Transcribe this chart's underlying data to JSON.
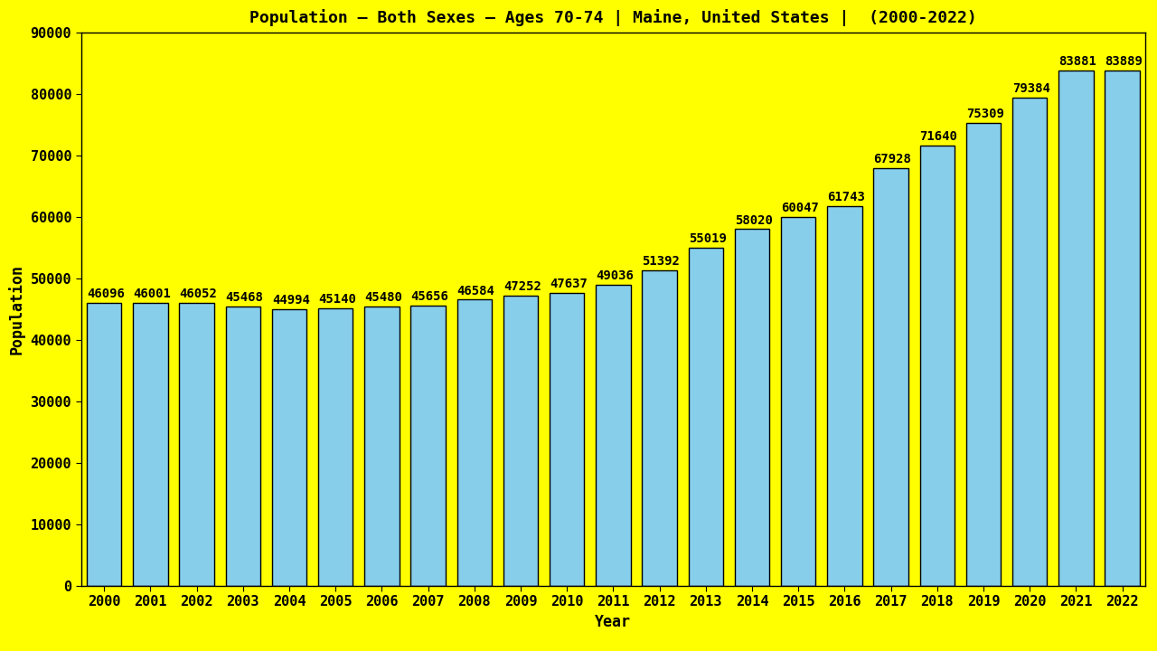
{
  "title": "Population – Both Sexes – Ages 70-74 | Maine, United States |  (2000-2022)",
  "xlabel": "Year",
  "ylabel": "Population",
  "background_color": "#FFFF00",
  "bar_color": "#87CEEB",
  "bar_edge_color": "#000000",
  "years": [
    2000,
    2001,
    2002,
    2003,
    2004,
    2005,
    2006,
    2007,
    2008,
    2009,
    2010,
    2011,
    2012,
    2013,
    2014,
    2015,
    2016,
    2017,
    2018,
    2019,
    2020,
    2021,
    2022
  ],
  "values": [
    46096,
    46001,
    46052,
    45468,
    44994,
    45140,
    45480,
    45656,
    46584,
    47252,
    47637,
    49036,
    51392,
    55019,
    58020,
    60047,
    61743,
    67928,
    71640,
    75309,
    79384,
    83881,
    83889
  ],
  "ylim": [
    0,
    90000
  ],
  "yticks": [
    0,
    10000,
    20000,
    30000,
    40000,
    50000,
    60000,
    70000,
    80000,
    90000
  ],
  "title_fontsize": 13,
  "axis_label_fontsize": 12,
  "tick_fontsize": 11,
  "value_label_fontsize": 10,
  "bar_width": 0.75
}
